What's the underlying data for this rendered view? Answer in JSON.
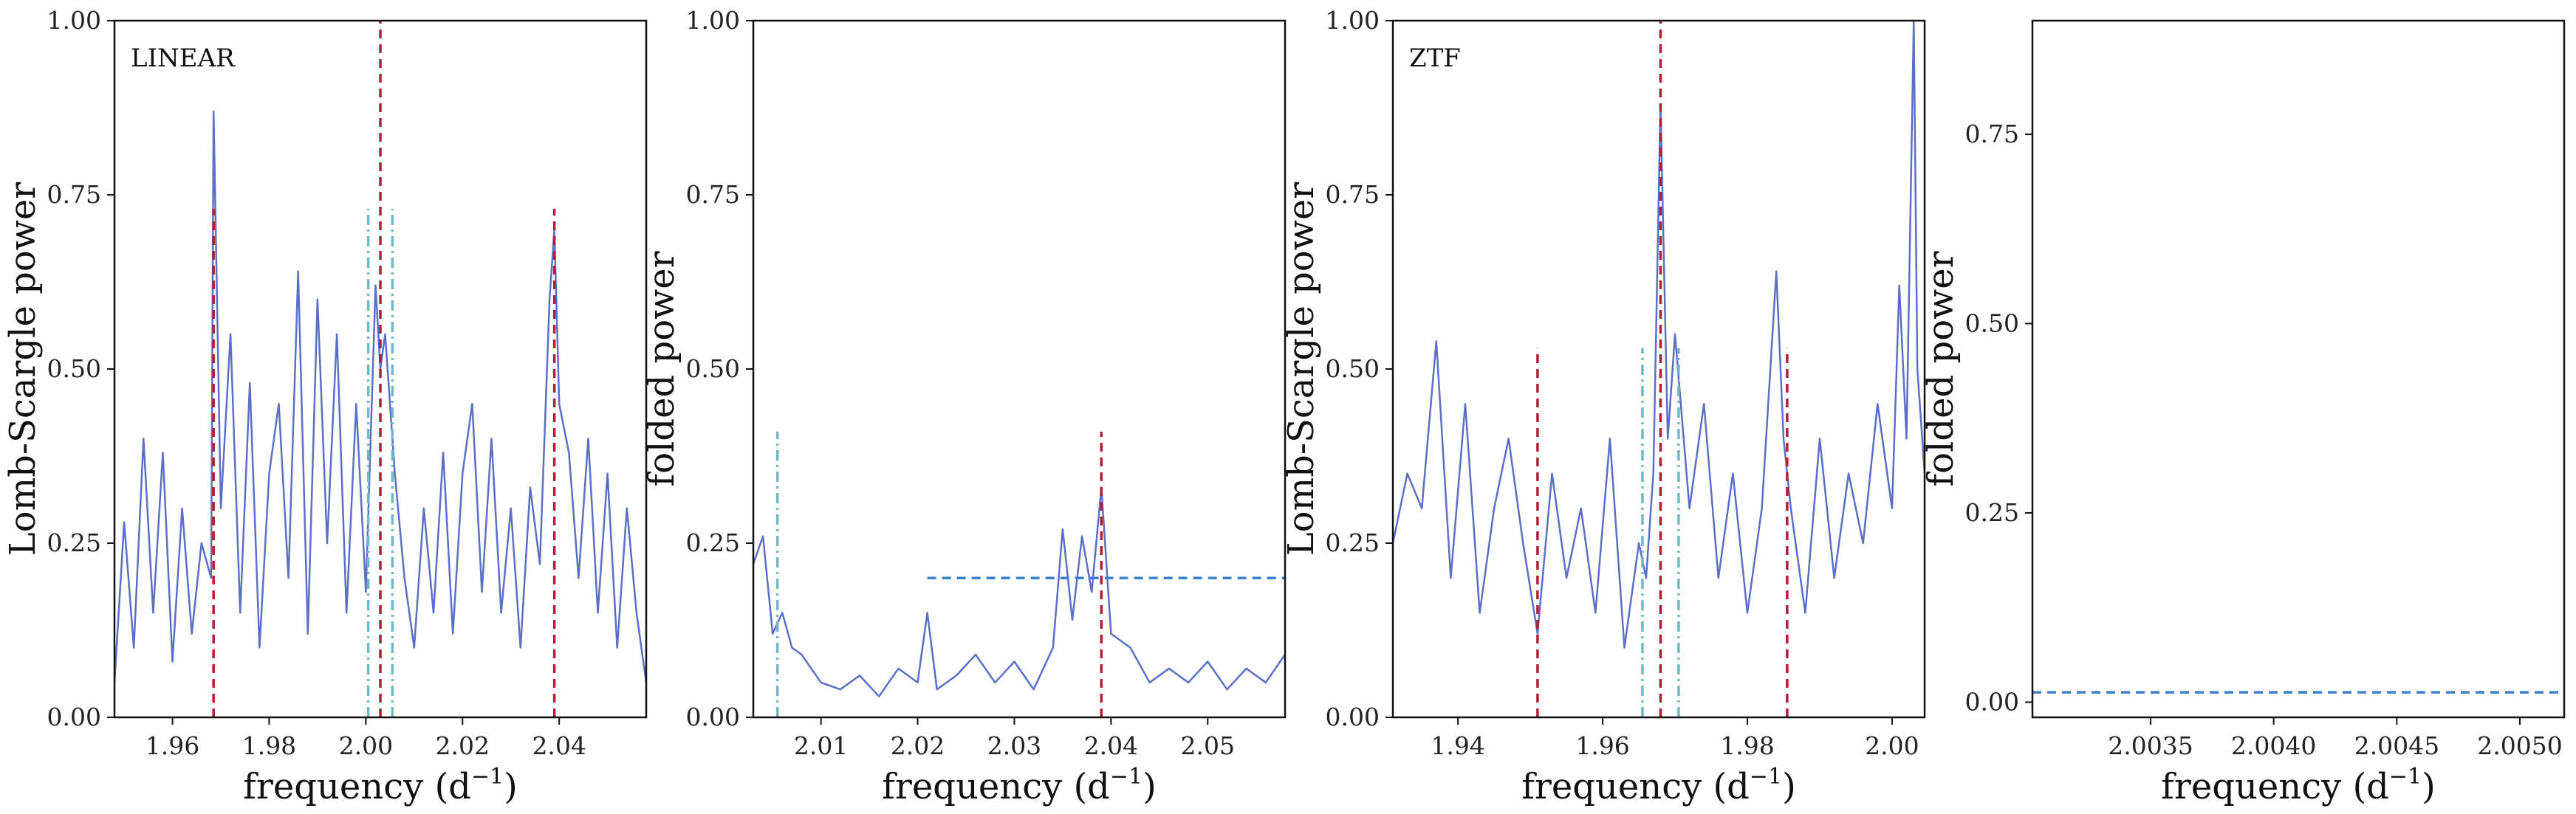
{
  "chart_data": [
    {
      "type": "line",
      "annotation": "LINEAR",
      "xlabel": "frequency (d",
      "xlabel_sup": "−1",
      "xlabel_close": ")",
      "ylabel": "Lomb-Scargle power",
      "xlim": [
        1.948,
        2.058
      ],
      "ylim": [
        0,
        1
      ],
      "xticks": [
        1.96,
        1.98,
        2.0,
        2.02,
        2.04
      ],
      "xtick_labels": [
        "1.96",
        "1.98",
        "2.00",
        "2.02",
        "2.04"
      ],
      "yticks": [
        0,
        0.25,
        0.5,
        0.75,
        1.0
      ],
      "ytick_labels": [
        "0.00",
        "0.25",
        "0.50",
        "0.75",
        "1.00"
      ],
      "series": [
        {
          "color": "#5b6fc7",
          "x": [
            1.948,
            1.95,
            1.952,
            1.954,
            1.956,
            1.958,
            1.96,
            1.962,
            1.964,
            1.966,
            1.968,
            1.9685,
            1.97,
            1.972,
            1.974,
            1.976,
            1.978,
            1.98,
            1.982,
            1.984,
            1.986,
            1.988,
            1.99,
            1.992,
            1.994,
            1.996,
            1.998,
            2.0,
            2.001,
            2.002,
            2.003,
            2.004,
            2.006,
            2.008,
            2.01,
            2.012,
            2.014,
            2.016,
            2.018,
            2.02,
            2.022,
            2.024,
            2.026,
            2.028,
            2.03,
            2.032,
            2.034,
            2.036,
            2.038,
            2.039,
            2.04,
            2.042,
            2.044,
            2.046,
            2.048,
            2.05,
            2.052,
            2.054,
            2.056,
            2.058
          ],
          "y": [
            0.05,
            0.28,
            0.1,
            0.4,
            0.15,
            0.38,
            0.08,
            0.3,
            0.12,
            0.25,
            0.2,
            0.87,
            0.3,
            0.55,
            0.15,
            0.48,
            0.1,
            0.35,
            0.45,
            0.2,
            0.64,
            0.12,
            0.6,
            0.25,
            0.55,
            0.15,
            0.45,
            0.18,
            0.4,
            0.62,
            0.5,
            0.55,
            0.35,
            0.2,
            0.1,
            0.3,
            0.15,
            0.38,
            0.12,
            0.35,
            0.45,
            0.18,
            0.4,
            0.15,
            0.3,
            0.1,
            0.33,
            0.22,
            0.6,
            0.7,
            0.45,
            0.38,
            0.2,
            0.4,
            0.15,
            0.35,
            0.1,
            0.3,
            0.15,
            0.05
          ]
        }
      ],
      "vlines": [
        {
          "x": 1.9685,
          "ymax": 0.73,
          "color": "#b21f35",
          "style": "dashed"
        },
        {
          "x": 2.003,
          "ymax": 1.0,
          "color": "#b21f35",
          "style": "dashed"
        },
        {
          "x": 2.039,
          "ymax": 0.73,
          "color": "#b21f35",
          "style": "dashed"
        },
        {
          "x": 2.0005,
          "ymax": 0.73,
          "color": "#6fb8c9",
          "style": "dashdot"
        },
        {
          "x": 2.0055,
          "ymax": 0.73,
          "color": "#6fb8c9",
          "style": "dashdot"
        }
      ],
      "hlines": []
    },
    {
      "type": "line",
      "annotation": "",
      "xlabel": "frequency (d",
      "xlabel_sup": "−1",
      "xlabel_close": ")",
      "ylabel": "folded power",
      "xlim": [
        2.003,
        2.058
      ],
      "ylim": [
        0,
        1
      ],
      "xticks": [
        2.01,
        2.02,
        2.03,
        2.04,
        2.05
      ],
      "xtick_labels": [
        "2.01",
        "2.02",
        "2.03",
        "2.04",
        "2.05"
      ],
      "yticks": [
        0,
        0.25,
        0.5,
        0.75,
        1.0
      ],
      "ytick_labels": [
        "0.00",
        "0.25",
        "0.50",
        "0.75",
        "1.00"
      ],
      "series": [
        {
          "color": "#5b6fc7",
          "x": [
            2.003,
            2.004,
            2.005,
            2.006,
            2.007,
            2.008,
            2.009,
            2.01,
            2.012,
            2.014,
            2.016,
            2.018,
            2.02,
            2.021,
            2.022,
            2.024,
            2.026,
            2.028,
            2.03,
            2.032,
            2.034,
            2.035,
            2.036,
            2.037,
            2.038,
            2.039,
            2.04,
            2.042,
            2.044,
            2.046,
            2.048,
            2.05,
            2.052,
            2.054,
            2.056,
            2.058
          ],
          "y": [
            0.22,
            0.26,
            0.12,
            0.15,
            0.1,
            0.09,
            0.07,
            0.05,
            0.04,
            0.06,
            0.03,
            0.07,
            0.05,
            0.15,
            0.04,
            0.06,
            0.09,
            0.05,
            0.08,
            0.04,
            0.1,
            0.27,
            0.14,
            0.26,
            0.18,
            0.33,
            0.12,
            0.1,
            0.05,
            0.07,
            0.05,
            0.08,
            0.04,
            0.07,
            0.05,
            0.09
          ]
        }
      ],
      "vlines": [
        {
          "x": 2.039,
          "ymax": 0.41,
          "color": "#b21f35",
          "style": "dashed"
        },
        {
          "x": 2.0055,
          "ymax": 0.41,
          "color": "#6fb8c9",
          "style": "dashdot"
        }
      ],
      "hlines": [
        {
          "y": 0.2,
          "xmin": 2.021,
          "xmax": 2.058,
          "color": "#3a7fc9",
          "style": "dashed"
        }
      ]
    },
    {
      "type": "line",
      "annotation": "ZTF",
      "xlabel": "frequency (d",
      "xlabel_sup": "−1",
      "xlabel_close": ")",
      "ylabel": "Lomb-Scargle power",
      "xlim": [
        1.931,
        2.0045
      ],
      "ylim": [
        0,
        1
      ],
      "xticks": [
        1.94,
        1.96,
        1.98,
        2.0
      ],
      "xtick_labels": [
        "1.94",
        "1.96",
        "1.98",
        "2.00"
      ],
      "yticks": [
        0,
        0.25,
        0.5,
        0.75,
        1.0
      ],
      "ytick_labels": [
        "0.00",
        "0.25",
        "0.50",
        "0.75",
        "1.00"
      ],
      "series": [
        {
          "color": "#5b6fc7",
          "x": [
            1.931,
            1.933,
            1.935,
            1.937,
            1.939,
            1.941,
            1.943,
            1.945,
            1.947,
            1.949,
            1.951,
            1.953,
            1.955,
            1.957,
            1.959,
            1.961,
            1.963,
            1.965,
            1.966,
            1.967,
            1.968,
            1.969,
            1.97,
            1.972,
            1.974,
            1.976,
            1.978,
            1.98,
            1.982,
            1.984,
            1.985,
            1.986,
            1.988,
            1.99,
            1.992,
            1.994,
            1.996,
            1.998,
            2.0,
            2.001,
            2.002,
            2.003,
            2.0035,
            2.0045
          ],
          "y": [
            0.25,
            0.35,
            0.3,
            0.54,
            0.2,
            0.45,
            0.15,
            0.3,
            0.4,
            0.25,
            0.12,
            0.35,
            0.2,
            0.3,
            0.15,
            0.4,
            0.1,
            0.25,
            0.2,
            0.35,
            0.88,
            0.4,
            0.55,
            0.3,
            0.45,
            0.2,
            0.35,
            0.15,
            0.3,
            0.64,
            0.4,
            0.3,
            0.15,
            0.4,
            0.2,
            0.35,
            0.25,
            0.45,
            0.3,
            0.62,
            0.4,
            1.0,
            0.5,
            0.35
          ]
        }
      ],
      "vlines": [
        {
          "x": 1.951,
          "ymax": 0.53,
          "color": "#b21f35",
          "style": "dashed"
        },
        {
          "x": 1.968,
          "ymax": 1.0,
          "color": "#b21f35",
          "style": "dashed"
        },
        {
          "x": 1.9855,
          "ymax": 0.53,
          "color": "#b21f35",
          "style": "dashed"
        },
        {
          "x": 1.9655,
          "ymax": 0.53,
          "color": "#6fb8c9",
          "style": "dashdot"
        },
        {
          "x": 1.9705,
          "ymax": 0.53,
          "color": "#6fb8c9",
          "style": "dashdot"
        }
      ],
      "hlines": []
    },
    {
      "type": "line",
      "annotation": "",
      "xlabel": "frequency (d",
      "xlabel_sup": "−1",
      "xlabel_close": ")",
      "ylabel": "folded power",
      "xlim": [
        2.00302,
        2.00518
      ],
      "ylim": [
        -0.02,
        0.9
      ],
      "xticks": [
        2.0035,
        2.004,
        2.0045,
        2.005
      ],
      "xtick_labels": [
        "2.0035",
        "2.0040",
        "2.0045",
        "2.0050"
      ],
      "yticks": [
        0,
        0.25,
        0.5,
        0.75
      ],
      "ytick_labels": [
        "0.00",
        "0.25",
        "0.50",
        "0.75"
      ],
      "series": [],
      "vlines": [],
      "hlines": [
        {
          "y": 0.013,
          "xmin": 2.00302,
          "xmax": 2.00518,
          "color": "#3a7fc9",
          "style": "dashed"
        }
      ]
    }
  ]
}
